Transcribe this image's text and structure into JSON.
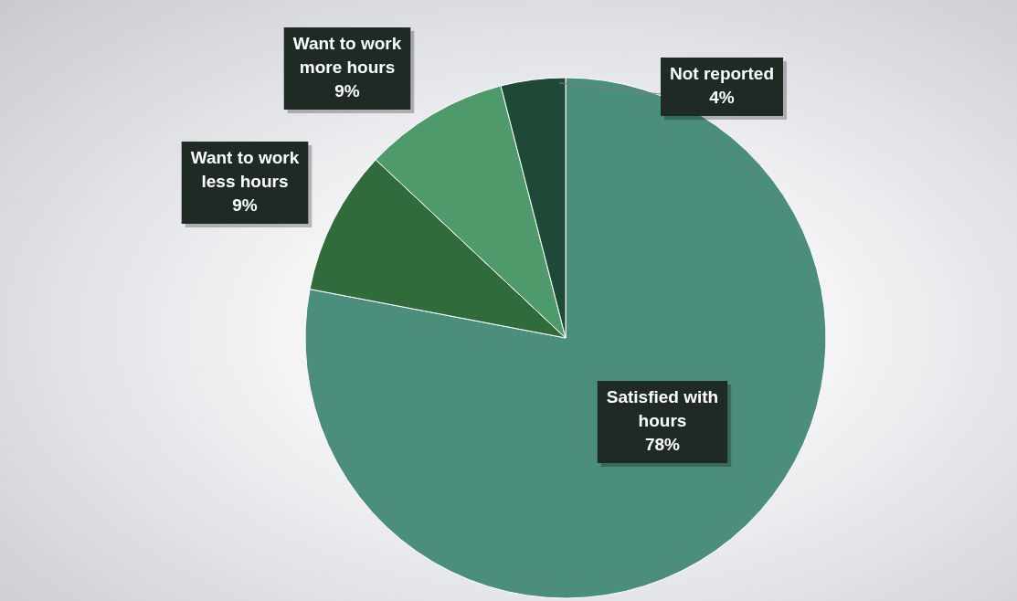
{
  "chart_data": {
    "type": "pie",
    "categories": [
      "Satisfied with hours",
      "Want to work less hours",
      "Want to work more hours",
      "Not reported"
    ],
    "values": [
      78,
      9,
      9,
      4
    ],
    "colors": [
      "#4b8e7b",
      "#2f6b3b",
      "#4e9a6b",
      "#1f4937"
    ],
    "value_labels": [
      "78%",
      "9%",
      "9%",
      "4%"
    ],
    "legend": false
  }
}
